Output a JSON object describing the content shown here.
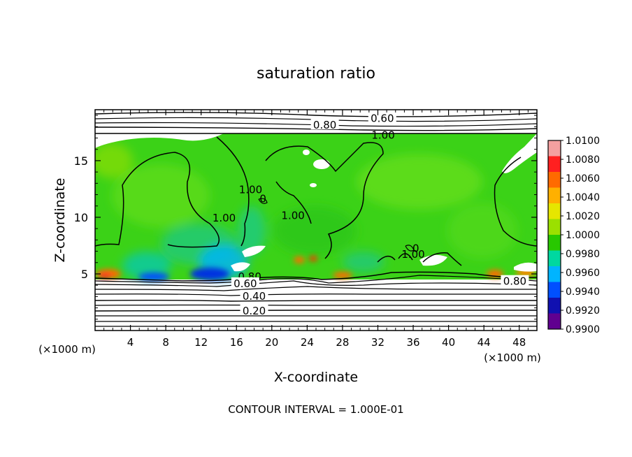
{
  "chart_data": {
    "type": "heatmap",
    "title": "saturation ratio",
    "xlabel": "X-coordinate",
    "ylabel": "Z-coordinate",
    "x_unit_left": "(×1000 m)",
    "x_unit_right": "(×1000 m)",
    "footer": "CONTOUR INTERVAL = 1.000E-01",
    "xlim": [
      0,
      50
    ],
    "ylim": [
      0,
      19.5
    ],
    "x_ticks": [
      4,
      8,
      12,
      16,
      20,
      24,
      28,
      32,
      36,
      40,
      44,
      48
    ],
    "x_tick_labels": [
      "4",
      "8",
      "12",
      "16",
      "20",
      "24",
      "28",
      "32",
      "36",
      "40",
      "44",
      "48"
    ],
    "y_ticks": [
      5,
      10,
      15
    ],
    "y_tick_labels": [
      "5",
      "10",
      "15"
    ],
    "colorbar": {
      "min": 0.99,
      "max": 1.01,
      "labels": [
        "1.0100",
        "1.0080",
        "1.0060",
        "1.0040",
        "1.0020",
        "1.0000",
        "0.9980",
        "0.9960",
        "0.9940",
        "0.9920",
        "0.9900"
      ],
      "colors": [
        "#f4a0a0",
        "#ff2020",
        "#ff6a00",
        "#ffb000",
        "#e6e600",
        "#9be000",
        "#28c800",
        "#00d8a0",
        "#00b4ff",
        "#0050ff",
        "#1010b0",
        "#600090"
      ]
    },
    "shaded_layer_z": [
      4.7,
      17.7
    ],
    "contour_labels": [
      {
        "text": "0.60",
        "x": 32.5,
        "z": 18.8
      },
      {
        "text": "0.80",
        "x": 26.0,
        "z": 18.2
      },
      {
        "text": "1.00",
        "x": 32.6,
        "z": 17.3
      },
      {
        "text": "1.00",
        "x": 14.6,
        "z": 10.0
      },
      {
        "text": "1.00",
        "x": 17.6,
        "z": 12.5
      },
      {
        "text": "1.00",
        "x": 22.4,
        "z": 10.2
      },
      {
        "text": "1.00",
        "x": 36.0,
        "z": 6.8
      },
      {
        "text": "0.80",
        "x": 17.5,
        "z": 4.8
      },
      {
        "text": "0.60",
        "x": 17.0,
        "z": 4.2
      },
      {
        "text": "0.40",
        "x": 18.0,
        "z": 3.1
      },
      {
        "text": "0.20",
        "x": 18.0,
        "z": 1.8
      },
      {
        "text": "0.80",
        "x": 47.5,
        "z": 4.4
      },
      {
        "text": "0",
        "x": 19.0,
        "z": 11.7
      },
      {
        "text": "0",
        "x": 36.3,
        "z": 7.3
      }
    ]
  }
}
